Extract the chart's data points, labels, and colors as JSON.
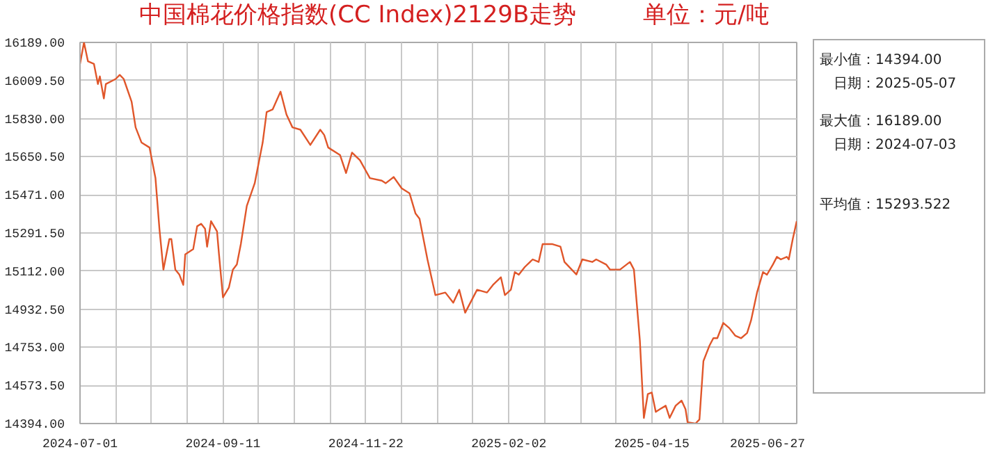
{
  "chart_data": {
    "type": "line",
    "title": "中国棉花价格指数(CC Index)2129B走势",
    "subtitle": "单位：元/吨",
    "annotations": [
      "最小值：14394.00",
      "日期：2025-05-07",
      "最大值：16189.00",
      "日期：2024-07-03",
      "平均值：15293.522"
    ],
    "xlim": [
      "2024-07-01",
      "2025-06-27"
    ],
    "xticks": [
      "2024-07-01",
      {
        "value": "2024-07-19",
        "label": null
      },
      {
        "value": "2024-08-06",
        "label": null
      },
      {
        "value": "2024-08-24",
        "label": null
      },
      "2024-09-11",
      {
        "value": "2024-09-29",
        "label": null
      },
      {
        "value": "2024-10-17",
        "label": null
      },
      {
        "value": "2024-11-04",
        "label": null
      },
      "2024-11-22",
      {
        "value": "2024-12-10",
        "label": null
      },
      {
        "value": "2024-12-28",
        "label": null
      },
      {
        "value": "2025-01-15",
        "label": null
      },
      "2025-02-02",
      {
        "value": "2025-02-20",
        "label": null
      },
      {
        "value": "2025-03-10",
        "label": null
      },
      {
        "value": "2025-03-28",
        "label": null
      },
      "2025-04-15",
      {
        "value": "2025-05-03",
        "label": null
      },
      {
        "value": "2025-05-21",
        "label": null
      },
      {
        "value": "2025-06-08",
        "label": null
      },
      "2025-06-27"
    ],
    "ylim": [
      14394,
      16189
    ],
    "yticks": [
      {
        "value": 14394,
        "label": "14394.00"
      },
      {
        "value": 14573.5,
        "label": "14573.50"
      },
      {
        "value": 14753,
        "label": "14753.00"
      },
      {
        "value": 14932.5,
        "label": "14932.50"
      },
      {
        "value": 15112,
        "label": "15112.00"
      },
      {
        "value": 15291.5,
        "label": "15291.50"
      },
      {
        "value": 15471,
        "label": "15471.00"
      },
      {
        "value": 15650.5,
        "label": "15650.50"
      },
      {
        "value": 15830,
        "label": "15830.00"
      },
      {
        "value": 16009.5,
        "label": "16009.50"
      },
      {
        "value": 16189,
        "label": "16189.00"
      }
    ],
    "grid": true,
    "x": [
      "2024-07-01",
      "2024-07-03",
      "2024-07-05",
      "2024-07-08",
      "2024-07-10",
      "2024-07-11",
      "2024-07-13",
      "2024-07-14",
      "2024-07-19",
      "2024-07-21",
      "2024-07-23",
      "2024-07-27",
      "2024-07-29",
      "2024-08-01",
      "2024-08-05",
      "2024-08-08",
      "2024-08-10",
      "2024-08-12",
      "2024-08-15",
      "2024-08-16",
      "2024-08-18",
      "2024-08-20",
      "2024-08-22",
      "2024-08-23",
      "2024-08-27",
      "2024-08-29",
      "2024-08-31",
      "2024-09-02",
      "2024-09-03",
      "2024-09-05",
      "2024-09-08",
      "2024-09-09",
      "2024-09-11",
      "2024-09-14",
      "2024-09-16",
      "2024-09-18",
      "2024-09-20",
      "2024-09-23",
      "2024-09-27",
      "2024-10-01",
      "2024-10-03",
      "2024-10-06",
      "2024-10-10",
      "2024-10-13",
      "2024-10-16",
      "2024-10-20",
      "2024-10-25",
      "2024-10-30",
      "2024-11-01",
      "2024-11-03",
      "2024-11-09",
      "2024-11-12",
      "2024-11-15",
      "2024-11-19",
      "2024-11-24",
      "2024-11-30",
      "2024-12-02",
      "2024-12-06",
      "2024-12-10",
      "2024-12-14",
      "2024-12-17",
      "2024-12-19",
      "2024-12-23",
      "2024-12-27",
      "2025-01-01",
      "2025-01-05",
      "2025-01-08",
      "2025-01-11",
      "2025-01-17",
      "2025-01-22",
      "2025-01-25",
      "2025-01-29",
      "2025-01-31",
      "2025-02-03",
      "2025-02-05",
      "2025-02-07",
      "2025-02-10",
      "2025-02-14",
      "2025-02-17",
      "2025-02-19",
      "2025-02-24",
      "2025-02-28",
      "2025-03-02",
      "2025-03-08",
      "2025-03-11",
      "2025-03-16",
      "2025-03-18",
      "2025-03-23",
      "2025-03-25",
      "2025-03-30",
      "2025-04-04",
      "2025-04-06",
      "2025-04-09",
      "2025-04-11",
      "2025-04-13",
      "2025-04-15",
      "2025-04-17",
      "2025-04-19",
      "2025-04-22",
      "2025-04-24",
      "2025-04-27",
      "2025-04-30",
      "2025-05-02",
      "2025-05-03",
      "2025-05-07",
      "2025-05-09",
      "2025-05-11",
      "2025-05-14",
      "2025-05-16",
      "2025-05-18",
      "2025-05-21",
      "2025-05-24",
      "2025-05-27",
      "2025-05-30",
      "2025-06-02",
      "2025-06-04",
      "2025-06-07",
      "2025-06-10",
      "2025-06-12",
      "2025-06-15",
      "2025-06-17",
      "2025-06-19",
      "2025-06-22",
      "2025-06-23",
      "2025-06-25",
      "2025-06-27"
    ],
    "series": [
      {
        "color": "#e0562a",
        "values": [
          16088,
          16189,
          16100,
          16088,
          15993,
          16029,
          15925,
          15993,
          16017,
          16036,
          16017,
          15909,
          15789,
          15717,
          15694,
          15550,
          15311,
          15119,
          15263,
          15263,
          15119,
          15096,
          15047,
          15191,
          15215,
          15323,
          15335,
          15311,
          15227,
          15347,
          15299,
          15191,
          14988,
          15035,
          15119,
          15143,
          15239,
          15419,
          15526,
          15717,
          15861,
          15873,
          15957,
          15849,
          15789,
          15778,
          15706,
          15778,
          15753,
          15694,
          15658,
          15574,
          15670,
          15634,
          15550,
          15538,
          15526,
          15555,
          15502,
          15478,
          15383,
          15359,
          15167,
          14999,
          15011,
          14963,
          15024,
          14916,
          15024,
          15011,
          15047,
          15083,
          14999,
          15024,
          15107,
          15095,
          15131,
          15167,
          15155,
          15239,
          15239,
          15227,
          15155,
          15096,
          15167,
          15155,
          15167,
          15143,
          15119,
          15119,
          15155,
          15119,
          14784,
          14420,
          14533,
          14540,
          14449,
          14461,
          14478,
          14421,
          14478,
          14502,
          14461,
          14400,
          14394,
          14413,
          14688,
          14760,
          14796,
          14796,
          14868,
          14844,
          14808,
          14796,
          14820,
          14880,
          15011,
          15107,
          15095,
          15143,
          15179,
          15167,
          15179,
          15167,
          15263,
          15347
        ]
      }
    ],
    "line_style": "solid",
    "marker": "none"
  }
}
